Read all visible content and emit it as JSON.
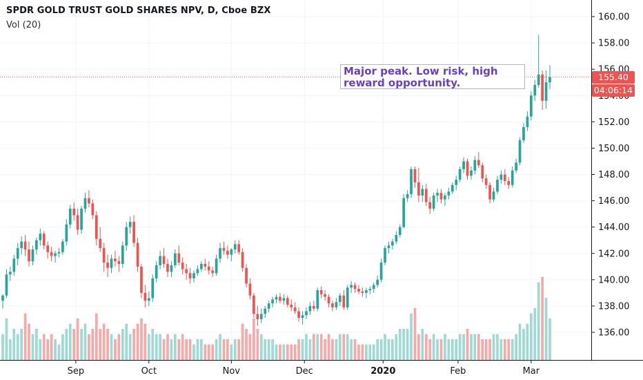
{
  "header": {
    "symbol_line": "SPDR GOLD TRUST GOLD SHARES NPV, D, Cboe BZX",
    "volume_label": "Vol (20)"
  },
  "annotation": {
    "text": "Major peak. Low risk, high\nreward opportunity."
  },
  "price_tag": {
    "last_price": "155.40",
    "countdown": "04:06:14"
  },
  "colors": {
    "up": "#26a69a",
    "down": "#ef5350",
    "up_vol": "#9fd9d3",
    "down_vol": "#f6a9a7",
    "annotation": "#6a3fc7"
  },
  "chart_data": {
    "type": "candlestick",
    "y_axis": {
      "ticks": [
        "160.00",
        "158.00",
        "156.00",
        "154.00",
        "152.00",
        "150.00",
        "148.00",
        "146.00",
        "144.00",
        "142.00",
        "140.00",
        "138.00",
        "136.00"
      ],
      "ylim": [
        134.5,
        161
      ]
    },
    "x_axis": {
      "ticks": [
        "Sep",
        "Oct",
        "Nov",
        "Dec",
        "2020",
        "Feb",
        "Mar"
      ]
    },
    "last_price": 155.4,
    "candles": [
      [
        138.4,
        138.9,
        137.8,
        138.8,
        5
      ],
      [
        138.8,
        140.8,
        138.6,
        140.4,
        8
      ],
      [
        140.4,
        141.0,
        139.9,
        140.6,
        4
      ],
      [
        140.6,
        141.9,
        140.3,
        141.6,
        6
      ],
      [
        141.6,
        142.8,
        141.1,
        142.4,
        5
      ],
      [
        142.4,
        143.3,
        141.9,
        142.9,
        6
      ],
      [
        142.9,
        143.4,
        141.8,
        142.3,
        9
      ],
      [
        142.3,
        142.9,
        141.0,
        141.4,
        7
      ],
      [
        141.4,
        142.6,
        141.1,
        142.3,
        5
      ],
      [
        142.3,
        143.2,
        141.9,
        143.0,
        6
      ],
      [
        143.0,
        143.9,
        142.6,
        143.5,
        4
      ],
      [
        143.5,
        143.7,
        142.3,
        142.6,
        5
      ],
      [
        142.6,
        142.9,
        141.6,
        142.1,
        4
      ],
      [
        142.1,
        142.5,
        141.4,
        141.8,
        5
      ],
      [
        141.8,
        142.2,
        141.3,
        142.0,
        4
      ],
      [
        142.0,
        142.4,
        141.7,
        142.1,
        3
      ],
      [
        142.1,
        143.1,
        141.9,
        142.9,
        5
      ],
      [
        142.9,
        144.6,
        142.6,
        144.2,
        6
      ],
      [
        144.2,
        145.7,
        143.9,
        145.4,
        7
      ],
      [
        145.4,
        145.9,
        144.5,
        144.9,
        6
      ],
      [
        144.9,
        145.4,
        143.4,
        143.8,
        8
      ],
      [
        143.8,
        145.6,
        143.5,
        145.4,
        6
      ],
      [
        145.4,
        146.6,
        145.1,
        146.2,
        7
      ],
      [
        146.2,
        146.8,
        145.5,
        145.8,
        5
      ],
      [
        145.8,
        146.1,
        144.6,
        144.9,
        6
      ],
      [
        144.9,
        145.2,
        142.6,
        143.1,
        9
      ],
      [
        143.1,
        144.0,
        142.1,
        142.4,
        6
      ],
      [
        142.4,
        142.8,
        140.6,
        141.3,
        7
      ],
      [
        141.3,
        141.9,
        140.2,
        140.9,
        6
      ],
      [
        140.9,
        141.9,
        140.5,
        141.6,
        5
      ],
      [
        141.6,
        142.2,
        141.0,
        141.4,
        4
      ],
      [
        141.4,
        141.8,
        140.6,
        141.2,
        5
      ],
      [
        141.2,
        142.9,
        140.9,
        142.6,
        6
      ],
      [
        142.6,
        144.4,
        142.2,
        144.0,
        7
      ],
      [
        144.0,
        144.8,
        143.5,
        144.4,
        5
      ],
      [
        144.4,
        144.9,
        142.5,
        142.8,
        6
      ],
      [
        142.8,
        143.2,
        140.6,
        141.0,
        7
      ],
      [
        141.0,
        141.2,
        138.6,
        139.0,
        8
      ],
      [
        139.0,
        139.6,
        137.9,
        138.4,
        7
      ],
      [
        138.4,
        139.1,
        138.0,
        138.6,
        5
      ],
      [
        138.6,
        140.4,
        138.3,
        140.1,
        6
      ],
      [
        140.1,
        141.4,
        139.8,
        141.1,
        5
      ],
      [
        141.1,
        142.2,
        140.8,
        141.8,
        5
      ],
      [
        141.8,
        142.4,
        140.9,
        141.2,
        4
      ],
      [
        141.2,
        141.6,
        140.2,
        140.6,
        5
      ],
      [
        140.6,
        141.4,
        140.2,
        141.1,
        4
      ],
      [
        141.1,
        142.3,
        140.9,
        142.0,
        5
      ],
      [
        142.0,
        142.6,
        141.1,
        141.3,
        4
      ],
      [
        141.3,
        141.7,
        140.4,
        140.8,
        5
      ],
      [
        140.8,
        141.2,
        140.0,
        140.5,
        4
      ],
      [
        140.5,
        140.9,
        139.7,
        140.1,
        4
      ],
      [
        140.1,
        140.7,
        139.8,
        140.5,
        3
      ],
      [
        140.5,
        141.1,
        140.3,
        140.8,
        4
      ],
      [
        140.8,
        141.4,
        140.6,
        141.2,
        4
      ],
      [
        141.2,
        141.6,
        140.7,
        141.0,
        3
      ],
      [
        141.0,
        141.4,
        140.4,
        140.7,
        3
      ],
      [
        140.7,
        141.0,
        140.2,
        140.5,
        3
      ],
      [
        140.5,
        141.9,
        140.3,
        141.6,
        4
      ],
      [
        141.6,
        142.8,
        141.3,
        142.4,
        5
      ],
      [
        142.4,
        142.9,
        141.9,
        142.2,
        4
      ],
      [
        142.2,
        142.6,
        141.6,
        141.9,
        4
      ],
      [
        141.9,
        142.4,
        141.4,
        142.3,
        3
      ],
      [
        142.3,
        143.0,
        142.0,
        142.7,
        4
      ],
      [
        142.7,
        143.0,
        141.9,
        142.1,
        4
      ],
      [
        142.1,
        142.4,
        140.6,
        140.9,
        7
      ],
      [
        140.9,
        141.2,
        139.4,
        139.7,
        6
      ],
      [
        139.7,
        140.1,
        138.5,
        138.8,
        5
      ],
      [
        138.8,
        139.0,
        137.1,
        137.4,
        8
      ],
      [
        137.4,
        138.0,
        136.5,
        137.0,
        6
      ],
      [
        137.0,
        137.8,
        136.7,
        137.4,
        5
      ],
      [
        137.4,
        138.0,
        137.1,
        137.8,
        4
      ],
      [
        137.8,
        138.4,
        137.5,
        138.2,
        4
      ],
      [
        138.2,
        138.7,
        137.9,
        138.5,
        4
      ],
      [
        138.5,
        138.9,
        138.2,
        138.7,
        3
      ],
      [
        138.7,
        139.0,
        138.2,
        138.4,
        3
      ],
      [
        138.4,
        138.9,
        138.1,
        138.6,
        3
      ],
      [
        138.6,
        138.8,
        137.9,
        138.1,
        3
      ],
      [
        138.1,
        138.5,
        137.6,
        137.9,
        3
      ],
      [
        137.9,
        138.3,
        137.4,
        137.6,
        3
      ],
      [
        137.6,
        137.9,
        136.8,
        137.1,
        4
      ],
      [
        137.1,
        137.6,
        136.6,
        137.3,
        4
      ],
      [
        137.3,
        137.9,
        137.0,
        137.6,
        5
      ],
      [
        137.6,
        138.3,
        137.3,
        138.0,
        4
      ],
      [
        138.0,
        138.4,
        137.6,
        137.8,
        5
      ],
      [
        137.8,
        139.4,
        137.6,
        139.2,
        5
      ],
      [
        139.2,
        139.5,
        138.6,
        138.9,
        5
      ],
      [
        138.9,
        139.2,
        138.4,
        138.7,
        4
      ],
      [
        138.7,
        138.9,
        137.9,
        138.2,
        5
      ],
      [
        138.2,
        138.4,
        137.6,
        137.9,
        4
      ],
      [
        137.9,
        138.6,
        137.7,
        138.3,
        4
      ],
      [
        138.3,
        139.0,
        138.0,
        138.8,
        5
      ],
      [
        138.8,
        139.2,
        137.7,
        137.9,
        5
      ],
      [
        137.9,
        139.6,
        137.7,
        139.4,
        5
      ],
      [
        139.4,
        139.9,
        139.0,
        139.6,
        4
      ],
      [
        139.6,
        139.8,
        139.0,
        139.3,
        4
      ],
      [
        139.3,
        139.6,
        138.9,
        139.1,
        3
      ],
      [
        139.1,
        139.4,
        138.7,
        139.0,
        3
      ],
      [
        139.0,
        139.4,
        138.6,
        139.2,
        3
      ],
      [
        139.2,
        139.5,
        138.9,
        139.3,
        3
      ],
      [
        139.3,
        139.8,
        139.0,
        139.6,
        3
      ],
      [
        139.6,
        140.3,
        139.4,
        140.0,
        4
      ],
      [
        140.0,
        141.6,
        139.8,
        141.3,
        4
      ],
      [
        141.3,
        142.6,
        141.1,
        142.4,
        5
      ],
      [
        142.4,
        142.9,
        142.0,
        142.6,
        4
      ],
      [
        142.6,
        143.1,
        142.3,
        142.9,
        4
      ],
      [
        142.9,
        143.7,
        142.7,
        143.4,
        5
      ],
      [
        143.4,
        144.2,
        143.2,
        144.0,
        6
      ],
      [
        144.0,
        146.5,
        143.9,
        146.2,
        6
      ],
      [
        146.2,
        146.8,
        145.9,
        146.5,
        6
      ],
      [
        146.5,
        148.6,
        146.2,
        148.4,
        9
      ],
      [
        148.4,
        148.6,
        147.0,
        147.4,
        10
      ],
      [
        147.4,
        148.5,
        145.9,
        146.4,
        5
      ],
      [
        146.4,
        147.2,
        145.9,
        146.9,
        6
      ],
      [
        146.9,
        147.3,
        145.6,
        145.9,
        5
      ],
      [
        145.9,
        146.3,
        145.0,
        145.4,
        4
      ],
      [
        145.4,
        146.6,
        145.2,
        146.4,
        5
      ],
      [
        146.4,
        146.9,
        145.9,
        146.6,
        4
      ],
      [
        146.6,
        146.9,
        145.8,
        146.1,
        4
      ],
      [
        146.1,
        146.6,
        145.6,
        146.4,
        5
      ],
      [
        146.4,
        147.0,
        146.1,
        146.7,
        4
      ],
      [
        146.7,
        147.4,
        146.5,
        147.2,
        4
      ],
      [
        147.2,
        147.9,
        146.8,
        147.6,
        4
      ],
      [
        147.6,
        148.6,
        147.4,
        148.4,
        5
      ],
      [
        148.4,
        149.3,
        148.1,
        149.0,
        5
      ],
      [
        149.0,
        149.2,
        147.6,
        147.9,
        6
      ],
      [
        147.9,
        148.6,
        147.6,
        148.3,
        5
      ],
      [
        148.3,
        149.4,
        148.0,
        149.1,
        5
      ],
      [
        149.1,
        149.7,
        148.5,
        148.7,
        5
      ],
      [
        148.7,
        148.9,
        147.4,
        147.7,
        4
      ],
      [
        147.7,
        148.0,
        146.9,
        147.2,
        4
      ],
      [
        147.2,
        147.4,
        145.8,
        146.1,
        4
      ],
      [
        146.1,
        147.0,
        145.9,
        146.7,
        5
      ],
      [
        146.7,
        147.9,
        146.5,
        147.6,
        5
      ],
      [
        147.6,
        148.3,
        147.3,
        148.0,
        4
      ],
      [
        148.0,
        148.4,
        147.2,
        147.5,
        4
      ],
      [
        147.5,
        147.8,
        146.9,
        147.2,
        4
      ],
      [
        147.2,
        148.6,
        147.0,
        148.3,
        4
      ],
      [
        148.3,
        149.2,
        148.1,
        148.9,
        5
      ],
      [
        148.9,
        150.8,
        148.7,
        150.6,
        7
      ],
      [
        150.6,
        151.9,
        150.4,
        151.6,
        6
      ],
      [
        151.6,
        152.8,
        151.3,
        152.4,
        7
      ],
      [
        152.4,
        154.3,
        152.1,
        154.0,
        9
      ],
      [
        154.0,
        155.2,
        153.6,
        154.8,
        10
      ],
      [
        154.8,
        158.6,
        154.6,
        155.6,
        15
      ],
      [
        155.6,
        155.9,
        152.9,
        153.6,
        16
      ],
      [
        153.6,
        155.9,
        153.0,
        155.0,
        12
      ],
      [
        155.0,
        156.3,
        154.5,
        155.4,
        8
      ]
    ]
  }
}
